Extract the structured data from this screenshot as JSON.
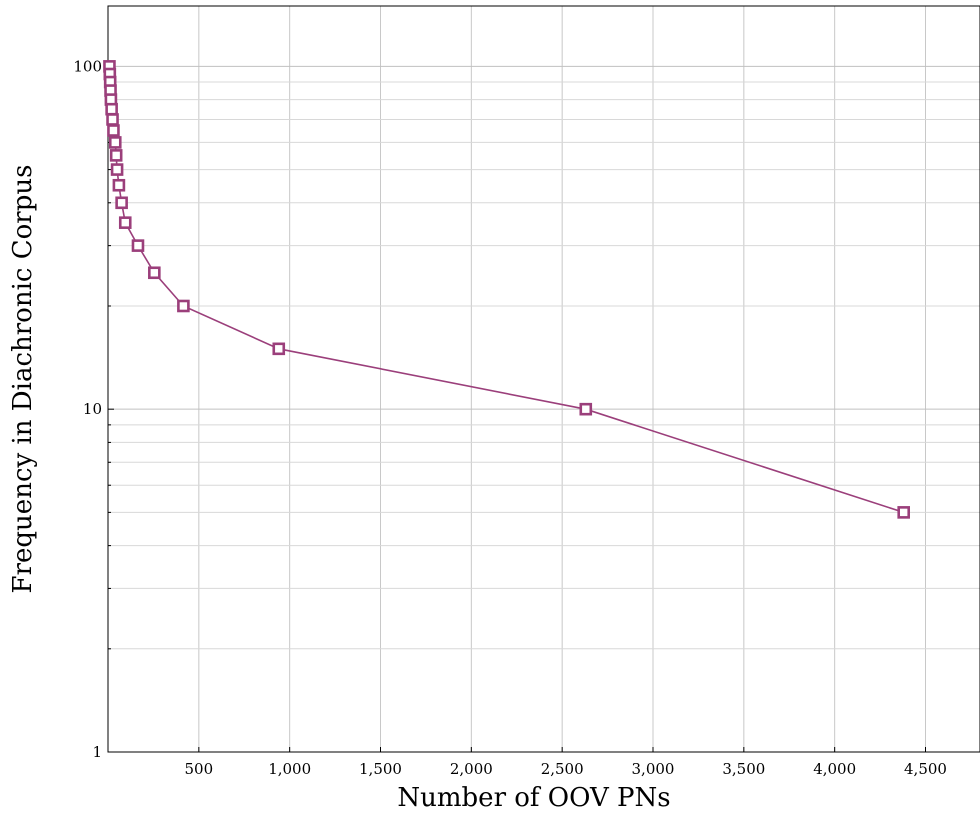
{
  "chart_data": {
    "type": "line",
    "title": "",
    "xlabel": "Number of OOV PNs",
    "ylabel": "Frequency in Diachronic Corpus",
    "xlim": [
      0,
      4800
    ],
    "ylim": [
      1,
      150
    ],
    "y_scale": "log",
    "grid": true,
    "x_ticks": [
      500,
      1000,
      1500,
      2000,
      2500,
      3000,
      3500,
      4000,
      4500
    ],
    "x_tick_labels": [
      "500",
      "1,000",
      "1,500",
      "2,000",
      "2,500",
      "3,000",
      "3,500",
      "4,000",
      "4,500"
    ],
    "y_ticks": [
      1,
      10,
      100
    ],
    "y_tick_labels": [
      "1",
      "10",
      "100"
    ],
    "series": [
      {
        "color": "#9b3f7b",
        "marker": "square",
        "x": [
          8,
          10,
          12,
          14,
          16,
          20,
          25,
          30,
          40,
          45,
          50,
          60,
          75,
          95,
          165,
          255,
          415,
          940,
          2630,
          4380
        ],
        "y": [
          100,
          95,
          90,
          85,
          80,
          75,
          70,
          65,
          60,
          55,
          50,
          45,
          40,
          35,
          30,
          25,
          20,
          15,
          10,
          5
        ]
      }
    ]
  }
}
